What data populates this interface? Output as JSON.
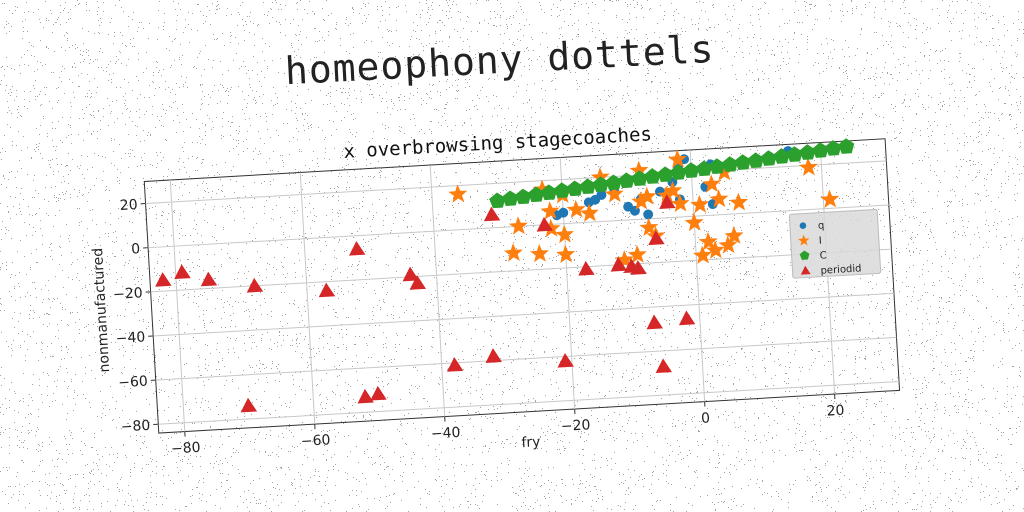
{
  "suptitle": "homeophony dottels",
  "chart_data": {
    "type": "scatter",
    "title": "x overbrowsing stagecoaches",
    "xlabel": "fry",
    "ylabel": "nonmanufactured",
    "xlim": [
      -84,
      30
    ],
    "ylim": [
      -84,
      30
    ],
    "xticks": [
      -80,
      -60,
      -40,
      -20,
      0,
      20
    ],
    "yticks": [
      -80,
      -60,
      -40,
      -20,
      0,
      20
    ],
    "grid": true,
    "legend_position": "right",
    "series": [
      {
        "name": "q",
        "marker": "circle",
        "color": "#1f77b4",
        "points": [
          [
            15,
            27
          ],
          [
            -1,
            26
          ],
          [
            3,
            23
          ],
          [
            -2,
            22
          ],
          [
            -6,
            20
          ],
          [
            -10,
            17
          ],
          [
            -3,
            16
          ],
          [
            -12,
            13
          ],
          [
            -5,
            12
          ],
          [
            -14,
            12
          ],
          [
            -15,
            10
          ],
          [
            -8,
            9
          ],
          [
            -16,
            9
          ],
          [
            -2,
            8
          ],
          [
            -10,
            6
          ],
          [
            -20,
            5
          ],
          [
            3,
            5
          ],
          [
            -21,
            4
          ],
          [
            -9,
            4
          ],
          [
            -7,
            2
          ],
          [
            2,
            13
          ],
          [
            -4,
            8
          ]
        ]
      },
      {
        "name": "I",
        "marker": "star",
        "color": "#ff7f0e",
        "points": [
          [
            -36,
            16
          ],
          [
            -23,
            16
          ],
          [
            -2,
            26
          ],
          [
            -8,
            22
          ],
          [
            -14,
            20
          ],
          [
            5,
            19
          ],
          [
            -20,
            13
          ],
          [
            -12,
            12
          ],
          [
            -3,
            12
          ],
          [
            -7,
            10
          ],
          [
            3,
            14
          ],
          [
            18,
            19
          ],
          [
            -8,
            8
          ],
          [
            -22,
            6
          ],
          [
            -18,
            6
          ],
          [
            -16,
            4
          ],
          [
            -27,
            0
          ],
          [
            -22,
            -2
          ],
          [
            -20,
            -5
          ],
          [
            -28,
            -12
          ],
          [
            -24,
            -13
          ],
          [
            -20,
            -14
          ],
          [
            -11,
            -18
          ],
          [
            -9,
            -16
          ],
          [
            -6,
            -8
          ],
          [
            0,
            -3
          ],
          [
            2,
            -12
          ],
          [
            3,
            -16
          ],
          [
            1,
            -18
          ],
          [
            5,
            -14
          ],
          [
            -7,
            -4
          ],
          [
            -2,
            6
          ],
          [
            1,
            5
          ],
          [
            7,
            5
          ],
          [
            21,
            4
          ],
          [
            6,
            -10
          ],
          [
            4,
            7
          ],
          [
            -4,
            10
          ]
        ]
      },
      {
        "name": "C",
        "marker": "pentagon",
        "color": "#2ca02c",
        "points": [
          [
            -30,
            12
          ],
          [
            -28,
            12.6
          ],
          [
            -26,
            13.1
          ],
          [
            -24,
            13.7
          ],
          [
            -22,
            14.3
          ],
          [
            -20,
            14.9
          ],
          [
            -18,
            15.4
          ],
          [
            -16,
            16.0
          ],
          [
            -14,
            16.6
          ],
          [
            -12,
            17.1
          ],
          [
            -10,
            17.7
          ],
          [
            -8,
            18.3
          ],
          [
            -6,
            18.9
          ],
          [
            -4,
            19.4
          ],
          [
            -2,
            20.0
          ],
          [
            0,
            20.6
          ],
          [
            2,
            21.1
          ],
          [
            4,
            21.7
          ],
          [
            6,
            22.3
          ],
          [
            8,
            22.9
          ],
          [
            10,
            23.4
          ],
          [
            12,
            24.0
          ],
          [
            14,
            24.6
          ],
          [
            16,
            25.1
          ],
          [
            18,
            25.7
          ],
          [
            20,
            26.3
          ],
          [
            22,
            26.9
          ],
          [
            24,
            27.4
          ]
        ]
      },
      {
        "name": "periodid",
        "marker": "triangle",
        "color": "#d62728",
        "points": [
          [
            -82,
            -15
          ],
          [
            -79,
            -12
          ],
          [
            -75,
            -16
          ],
          [
            -68,
            -20
          ],
          [
            -57,
            -24
          ],
          [
            -52,
            -6
          ],
          [
            -44,
            -19
          ],
          [
            -43,
            -23
          ],
          [
            -31,
            6
          ],
          [
            -23,
            0
          ],
          [
            -17,
            -21
          ],
          [
            -12,
            -20
          ],
          [
            -10,
            -21
          ],
          [
            -9,
            -22
          ],
          [
            -6,
            -9
          ],
          [
            -4,
            7
          ],
          [
            -38,
            -61
          ],
          [
            -32,
            -58
          ],
          [
            -21,
            -62
          ],
          [
            -7,
            -47
          ],
          [
            -2,
            -46
          ],
          [
            -6,
            -67
          ],
          [
            -52,
            -73
          ],
          [
            -50,
            -72
          ],
          [
            -70,
            -74
          ]
        ]
      }
    ]
  }
}
